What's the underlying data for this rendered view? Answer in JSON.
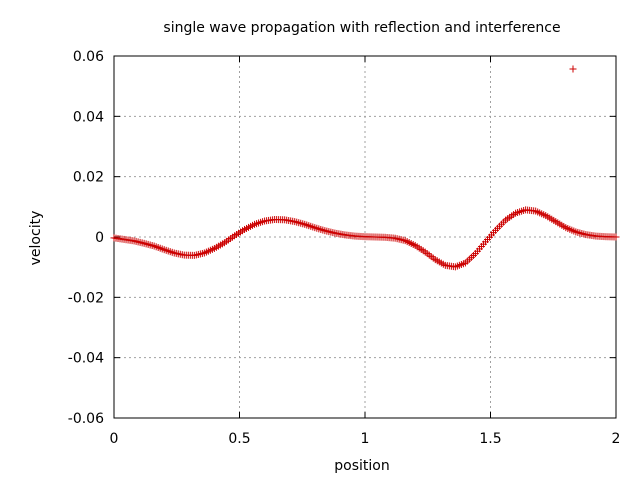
{
  "chart_data": {
    "type": "scatter",
    "title": "single wave propagation with reflection and interference",
    "xlabel": "position",
    "ylabel": "velocity",
    "xlim": [
      0,
      2
    ],
    "ylim": [
      -0.06,
      0.06
    ],
    "xticks": [
      0,
      0.5,
      1,
      1.5,
      2
    ],
    "xtick_labels": [
      "0",
      "0.5",
      "1",
      "1.5",
      "2"
    ],
    "yticks": [
      -0.06,
      -0.04,
      -0.02,
      0,
      0.02,
      0.04,
      0.06
    ],
    "ytick_labels": [
      "-0.06",
      "-0.04",
      "-0.02",
      "0",
      "0.02",
      "0.04",
      "0.06"
    ],
    "grid": true,
    "legend": "top-right",
    "marker": "plus",
    "colors": {
      "series": "#cc0000",
      "grid": "#a0a0a0",
      "frame": "#000000"
    },
    "series": [
      {
        "name": "",
        "x": [
          0,
          0.04,
          0.08,
          0.12,
          0.16,
          0.2,
          0.24,
          0.28,
          0.32,
          0.36,
          0.4,
          0.44,
          0.48,
          0.52,
          0.56,
          0.6,
          0.64,
          0.68,
          0.72,
          0.76,
          0.8,
          0.84,
          0.88,
          0.92,
          0.96,
          1.0,
          1.04,
          1.08,
          1.12,
          1.16,
          1.2,
          1.24,
          1.28,
          1.32,
          1.36,
          1.4,
          1.44,
          1.48,
          1.52,
          1.56,
          1.6,
          1.64,
          1.68,
          1.72,
          1.76,
          1.8,
          1.84,
          1.88,
          1.92,
          1.96,
          2.0
        ],
        "y": [
          -0.0003,
          -0.0008,
          -0.0013,
          -0.0021,
          -0.003,
          -0.0042,
          -0.0053,
          -0.006,
          -0.0061,
          -0.0053,
          -0.0038,
          -0.0019,
          0.0004,
          0.0025,
          0.0042,
          0.0053,
          0.0058,
          0.0057,
          0.0051,
          0.0042,
          0.0031,
          0.0021,
          0.0013,
          0.0007,
          0.0003,
          0.0001,
          0.0,
          -0.0001,
          -0.0004,
          -0.0012,
          -0.0028,
          -0.005,
          -0.0075,
          -0.0094,
          -0.0099,
          -0.0086,
          -0.0055,
          -0.0016,
          0.0022,
          0.0056,
          0.0079,
          0.009,
          0.0086,
          0.0071,
          0.0051,
          0.0031,
          0.0017,
          0.0008,
          0.0003,
          0.0001,
          0.0
        ]
      }
    ]
  }
}
